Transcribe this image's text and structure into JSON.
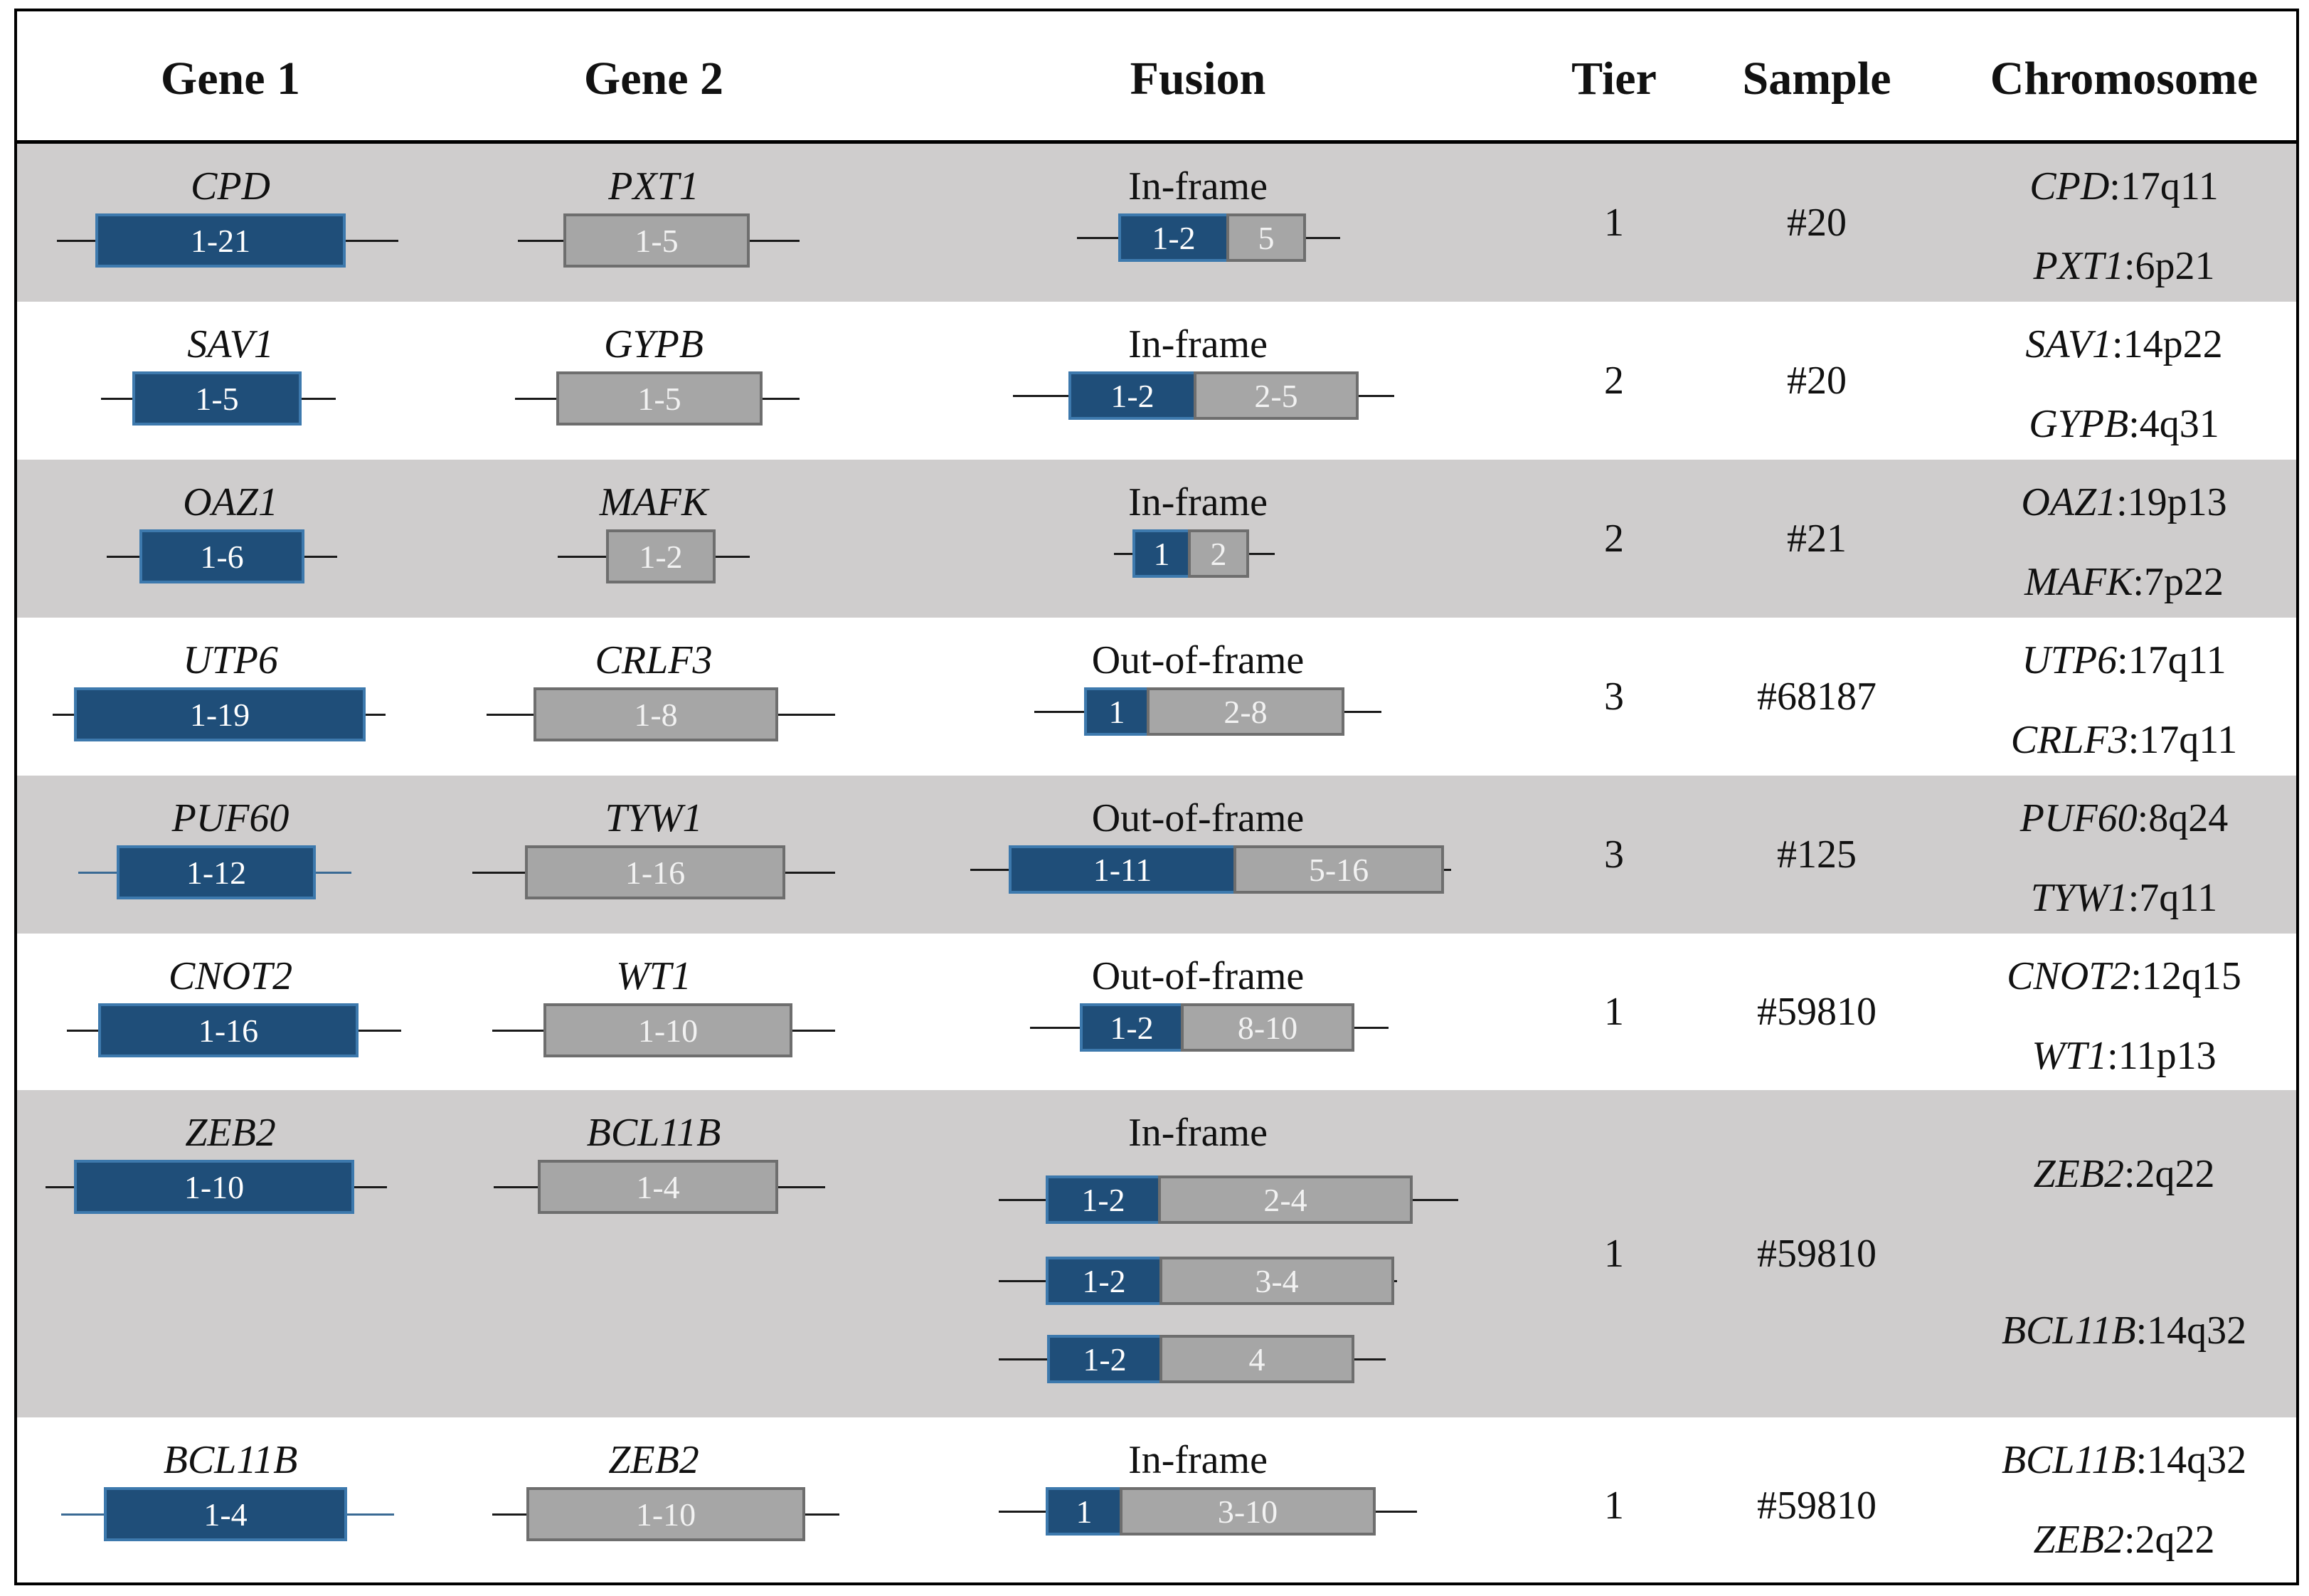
{
  "headers": [
    "Gene 1",
    "Gene 2",
    "Fusion",
    "Tier",
    "Sample",
    "Chromosome"
  ],
  "rows": [
    {
      "shaded": true,
      "gene1": {
        "name": "CPD",
        "exons": "1-21"
      },
      "gene2": {
        "name": "PXT1",
        "exons": "1-5"
      },
      "fusion": {
        "type": "In-frame",
        "constructs": [
          {
            "left": "1-2",
            "right": "5"
          }
        ]
      },
      "tier": "1",
      "sample": "#20",
      "chromosome": [
        {
          "gene": "CPD",
          "band": ":17q11"
        },
        {
          "gene": "PXT1",
          "band": ":6p21"
        }
      ]
    },
    {
      "shaded": false,
      "gene1": {
        "name": "SAV1",
        "exons": "1-5"
      },
      "gene2": {
        "name": "GYPB",
        "exons": "1-5"
      },
      "fusion": {
        "type": "In-frame",
        "constructs": [
          {
            "left": "1-2",
            "right": "2-5"
          }
        ]
      },
      "tier": "2",
      "sample": "#20",
      "chromosome": [
        {
          "gene": "SAV1",
          "band": ":14p22"
        },
        {
          "gene": "GYPB",
          "band": ":4q31"
        }
      ]
    },
    {
      "shaded": true,
      "gene1": {
        "name": "OAZ1",
        "exons": "1-6"
      },
      "gene2": {
        "name": "MAFK",
        "exons": "1-2"
      },
      "fusion": {
        "type": "In-frame",
        "constructs": [
          {
            "left": "1",
            "right": "2"
          }
        ]
      },
      "tier": "2",
      "sample": "#21",
      "chromosome": [
        {
          "gene": "OAZ1",
          "band": ":19p13"
        },
        {
          "gene": "MAFK",
          "band": ":7p22"
        }
      ]
    },
    {
      "shaded": false,
      "gene1": {
        "name": "UTP6",
        "exons": "1-19"
      },
      "gene2": {
        "name": "CRLF3",
        "exons": "1-8"
      },
      "fusion": {
        "type": "Out-of-frame",
        "constructs": [
          {
            "left": "1",
            "right": "2-8"
          }
        ]
      },
      "tier": "3",
      "sample": "#68187",
      "chromosome": [
        {
          "gene": "UTP6",
          "band": ":17q11"
        },
        {
          "gene": "CRLF3",
          "band": ":17q11"
        }
      ]
    },
    {
      "shaded": true,
      "gene1": {
        "name": "PUF60",
        "exons": "1-12"
      },
      "gene2": {
        "name": "TYW1",
        "exons": "1-16"
      },
      "fusion": {
        "type": "Out-of-frame",
        "constructs": [
          {
            "left": "1-11",
            "right": "5-16"
          }
        ]
      },
      "tier": "3",
      "sample": "#125",
      "chromosome": [
        {
          "gene": "PUF60",
          "band": ":8q24"
        },
        {
          "gene": "TYW1",
          "band": ":7q11"
        }
      ]
    },
    {
      "shaded": false,
      "gene1": {
        "name": "CNOT2",
        "exons": "1-16"
      },
      "gene2": {
        "name": "WT1",
        "exons": "1-10"
      },
      "fusion": {
        "type": "Out-of-frame",
        "constructs": [
          {
            "left": "1-2",
            "right": "8-10"
          }
        ]
      },
      "tier": "1",
      "sample": "#59810",
      "chromosome": [
        {
          "gene": "CNOT2",
          "band": ":12q15"
        },
        {
          "gene": "WT1",
          "band": ":11p13"
        }
      ]
    },
    {
      "shaded": true,
      "gene1": {
        "name": "ZEB2",
        "exons": "1-10"
      },
      "gene2": {
        "name": "BCL11B",
        "exons": "1-4"
      },
      "fusion": {
        "type": "In-frame",
        "constructs": [
          {
            "left": "1-2",
            "right": "2-4"
          },
          {
            "left": "1-2",
            "right": "3-4"
          },
          {
            "left": "1-2",
            "right": "4"
          }
        ]
      },
      "tier": "1",
      "sample": "#59810",
      "chromosome": [
        {
          "gene": "ZEB2",
          "band": ":2q22"
        },
        {
          "gene": "BCL11B",
          "band": ":14q32"
        }
      ]
    },
    {
      "shaded": false,
      "gene1": {
        "name": "BCL11B",
        "exons": "1-4"
      },
      "gene2": {
        "name": "ZEB2",
        "exons": "1-10"
      },
      "fusion": {
        "type": "In-frame",
        "constructs": [
          {
            "left": "1",
            "right": "3-10"
          }
        ]
      },
      "tier": "1",
      "sample": "#59810",
      "chromosome": [
        {
          "gene": "BCL11B",
          "band": ":14q32"
        },
        {
          "gene": "ZEB2",
          "band": ":2q22"
        }
      ]
    }
  ]
}
